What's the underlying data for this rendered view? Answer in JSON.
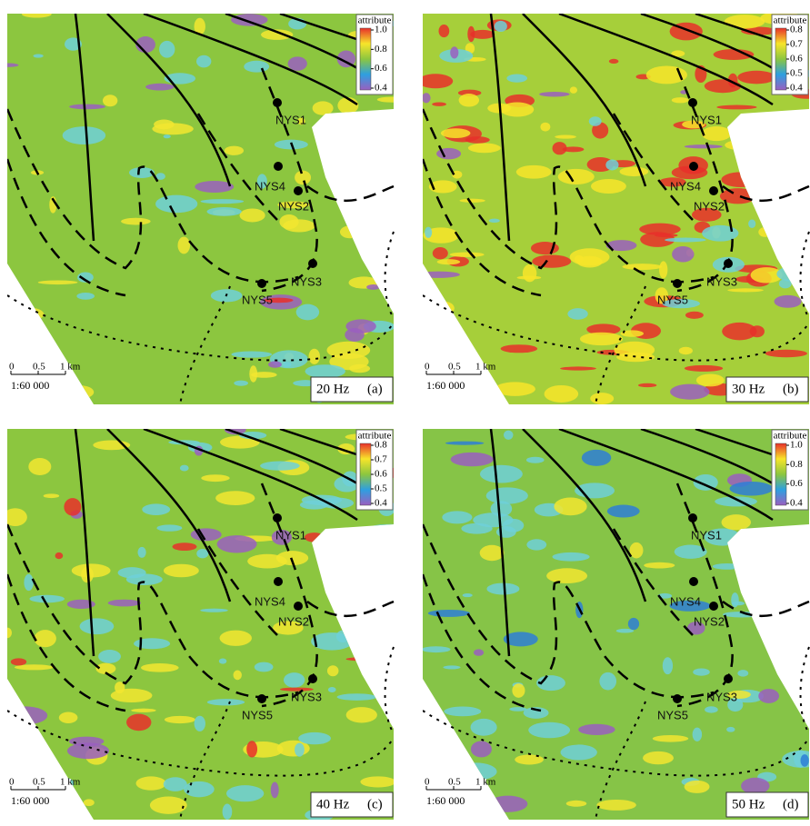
{
  "panels": [
    {
      "frequency": "20 Hz",
      "letter": "(a)",
      "colorbar": {
        "title": "attribute",
        "ticks": [
          "1.0",
          "0.8",
          "0.6",
          "0.4"
        ]
      }
    },
    {
      "frequency": "30 Hz",
      "letter": "(b)",
      "colorbar": {
        "title": "attribute",
        "ticks": [
          "0.8",
          "0.7",
          "0.6",
          "0.5",
          "0.4"
        ]
      }
    },
    {
      "frequency": "40 Hz",
      "letter": "(c)",
      "colorbar": {
        "title": "attribute",
        "ticks": [
          "0.8",
          "0.7",
          "0.6",
          "0.5",
          "0.4"
        ]
      }
    },
    {
      "frequency": "50 Hz",
      "letter": "(d)",
      "colorbar": {
        "title": "attribute",
        "ticks": [
          "1.0",
          "0.8",
          "0.6",
          "0.4"
        ]
      }
    }
  ],
  "wells": [
    "NYS1",
    "NYS4",
    "NYS2",
    "NYS3",
    "NYS5"
  ],
  "scale_bar": {
    "labels": [
      "0",
      "0.5",
      "1 km"
    ],
    "ratio": "1:60 000"
  }
}
